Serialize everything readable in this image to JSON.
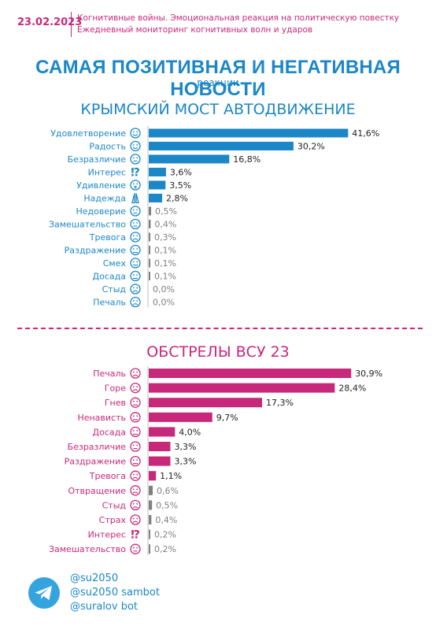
{
  "header": {
    "date": "23.02.2023",
    "line1": "Когнитивные войны. Эмоциональная реакция на политическую повестку",
    "line2": "Ежедневный мониторинг когнитивных волн и ударов"
  },
  "main_title": "САМАЯ ПОЗИТИВНАЯ И НЕГАТИВНАЯ НОВОСТИ",
  "main_subtitle": "реакции",
  "colors": {
    "blue": "#1b87c7",
    "pink": "#c8287a",
    "gray": "#808080"
  },
  "chart_data": [
    {
      "type": "bar",
      "orientation": "horizontal",
      "title": "КРЫМСКИЙ МОСТ АВТОДВИЖЕНИЕ",
      "color": "#1b87c7",
      "categories": [
        "Удовлетворение",
        "Радость",
        "Безразличие",
        "Интерес",
        "Удивление",
        "Надежда",
        "Недоверие",
        "Замешательство",
        "Тревога",
        "Раздражение",
        "Смех",
        "Досада",
        "Стыд",
        "Печаль"
      ],
      "icons": [
        "satisfied-face-icon",
        "joy-face-icon",
        "indifferent-face-icon",
        "interrobang-icon",
        "surprised-face-icon",
        "praying-hands-icon",
        "distrust-face-icon",
        "confused-face-icon",
        "anxious-face-icon",
        "irritated-face-icon",
        "laughing-face-icon",
        "annoyed-face-icon",
        "ashamed-face-icon",
        "sad-face-icon"
      ],
      "values": [
        41.6,
        30.2,
        16.8,
        3.6,
        3.5,
        2.8,
        0.5,
        0.4,
        0.3,
        0.1,
        0.1,
        0.1,
        0.0,
        0.0
      ],
      "labels": [
        "41,6%",
        "30,2%",
        "16,8%",
        "3,6%",
        "3,5%",
        "2,8%",
        "0,5%",
        "0,4%",
        "0,3%",
        "0,1%",
        "0,1%",
        "0,1%",
        "0,0%",
        "0,0%"
      ],
      "xlim": [
        0,
        45
      ]
    },
    {
      "type": "bar",
      "orientation": "horizontal",
      "title": "ОБСТРЕЛЫ ВСУ 23",
      "color": "#c8287a",
      "categories": [
        "Печаль",
        "Горе",
        "Гнев",
        "Ненависть",
        "Досада",
        "Безразличие",
        "Раздражение",
        "Тревога",
        "Отвращение",
        "Стыд",
        "Страх",
        "Интерес",
        "Замешательство"
      ],
      "icons": [
        "sad-face-icon",
        "grief-face-icon",
        "angry-face-icon",
        "hatred-face-icon",
        "annoyed-face-icon",
        "indifferent-face-icon",
        "irritated-face-icon",
        "anxious-face-icon",
        "disgusted-face-icon",
        "ashamed-face-icon",
        "fear-face-icon",
        "interrobang-icon",
        "confused-face-icon"
      ],
      "values": [
        30.9,
        28.4,
        17.3,
        9.7,
        4.0,
        3.3,
        3.3,
        1.1,
        0.6,
        0.5,
        0.4,
        0.2,
        0.2
      ],
      "labels": [
        "30,9%",
        "28,4%",
        "17,3%",
        "9,7%",
        "4,0%",
        "3,3%",
        "3,3%",
        "1,1%",
        "0,6%",
        "0,5%",
        "0,4%",
        "0,2%",
        "0,2%"
      ],
      "xlim": [
        0,
        34
      ]
    }
  ],
  "footer": {
    "links": [
      "@su2050",
      "@su2050 sambot",
      "@suralov bot"
    ]
  }
}
